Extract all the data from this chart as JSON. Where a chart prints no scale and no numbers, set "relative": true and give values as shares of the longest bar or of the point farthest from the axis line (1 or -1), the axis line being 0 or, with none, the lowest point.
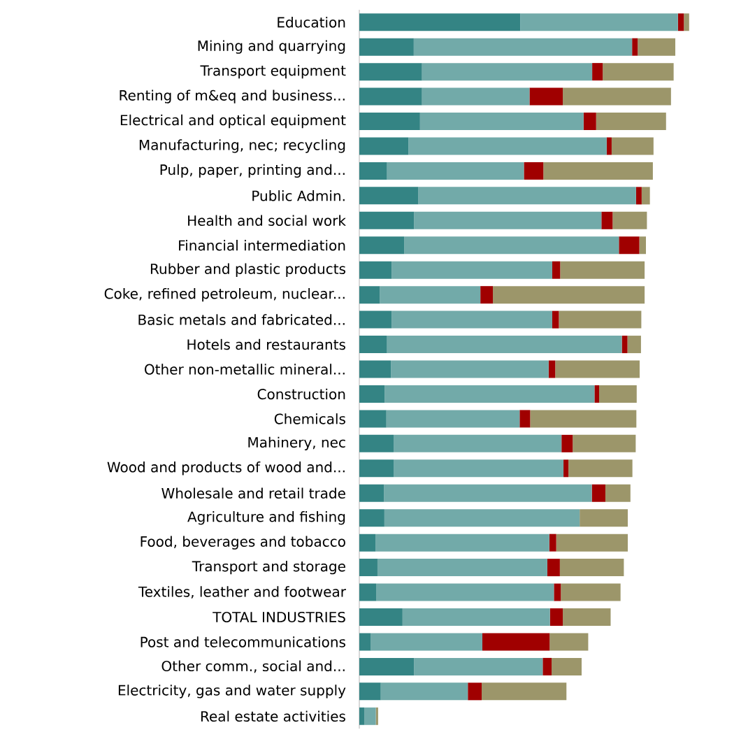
{
  "chart_data": {
    "type": "bar",
    "orientation": "horizontal",
    "stacked": true,
    "relative": true,
    "categories": [
      "Education",
      "Mining and quarrying",
      "Transport equipment",
      "Renting of m&eq and business...",
      "Electrical and optical equipment",
      "Manufacturing, nec; recycling",
      "Pulp, paper, printing and...",
      "Public Admin.",
      "Health and social work",
      "Financial intermediation",
      "Rubber and plastic products",
      "Coke, refined petroleum, nuclear...",
      "Basic metals and fabricated...",
      "Hotels and restaurants",
      "Other non-metallic mineral...",
      "Construction",
      "Chemicals",
      "Mahinery, nec",
      "Wood and products of wood and...",
      "Wholesale and retail trade",
      "Agriculture and fishing",
      "Food, beverages and tobacco",
      "Transport and storage",
      "Textiles, leather and footwear",
      "TOTAL INDUSTRIES",
      "Post and telecommunications",
      "Other comm., social and...",
      "Electricity, gas and water supply",
      "Real estate activities"
    ],
    "series": [
      {
        "color": "#348484",
        "values": [
          0.489,
          0.165,
          0.19,
          0.19,
          0.184,
          0.149,
          0.084,
          0.179,
          0.166,
          0.136,
          0.098,
          0.062,
          0.098,
          0.084,
          0.096,
          0.077,
          0.082,
          0.104,
          0.104,
          0.075,
          0.076,
          0.049,
          0.055,
          0.051,
          0.131,
          0.035,
          0.166,
          0.065,
          0.015
        ]
      },
      {
        "color": "#72aaa9",
        "values": [
          0.477,
          0.662,
          0.516,
          0.326,
          0.496,
          0.601,
          0.415,
          0.66,
          0.568,
          0.651,
          0.487,
          0.305,
          0.487,
          0.712,
          0.478,
          0.636,
          0.404,
          0.509,
          0.515,
          0.63,
          0.592,
          0.527,
          0.515,
          0.539,
          0.447,
          0.338,
          0.39,
          0.264,
          0.035
        ]
      },
      {
        "color": "#a00000",
        "values": [
          0.018,
          0.017,
          0.032,
          0.101,
          0.038,
          0.015,
          0.059,
          0.017,
          0.034,
          0.062,
          0.024,
          0.038,
          0.02,
          0.017,
          0.02,
          0.014,
          0.032,
          0.034,
          0.015,
          0.041,
          0,
          0.021,
          0.038,
          0.021,
          0.039,
          0.204,
          0.027,
          0.042,
          0
        ]
      },
      {
        "color": "#9c966a",
        "values": [
          0.016,
          0.114,
          0.215,
          0.328,
          0.212,
          0.127,
          0.332,
          0.025,
          0.104,
          0.02,
          0.256,
          0.46,
          0.25,
          0.041,
          0.256,
          0.114,
          0.322,
          0.191,
          0.194,
          0.076,
          0.146,
          0.217,
          0.194,
          0.181,
          0.145,
          0.117,
          0.091,
          0.257,
          0.007
        ]
      }
    ]
  }
}
